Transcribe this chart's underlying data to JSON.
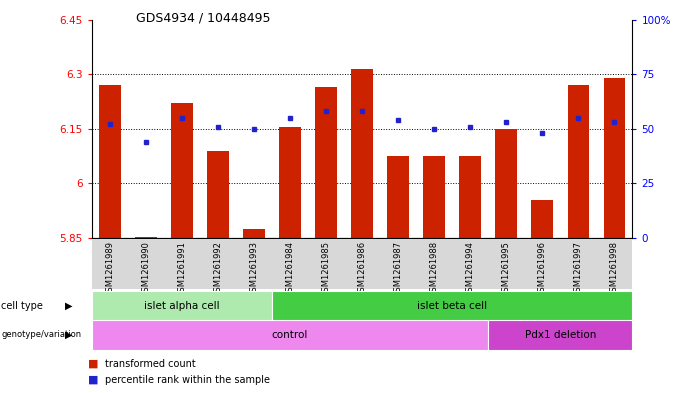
{
  "title": "GDS4934 / 10448495",
  "samples": [
    "GSM1261989",
    "GSM1261990",
    "GSM1261991",
    "GSM1261992",
    "GSM1261993",
    "GSM1261984",
    "GSM1261985",
    "GSM1261986",
    "GSM1261987",
    "GSM1261988",
    "GSM1261994",
    "GSM1261995",
    "GSM1261996",
    "GSM1261997",
    "GSM1261998"
  ],
  "red_values": [
    6.27,
    5.852,
    6.22,
    6.09,
    5.875,
    6.155,
    6.265,
    6.315,
    6.075,
    6.075,
    6.075,
    6.15,
    5.955,
    6.27,
    6.29
  ],
  "blue_values": [
    52,
    44,
    55,
    51,
    50,
    55,
    58,
    58,
    54,
    50,
    51,
    53,
    48,
    55,
    53
  ],
  "ylim_left": [
    5.85,
    6.45
  ],
  "ylim_right": [
    0,
    100
  ],
  "yticks_left": [
    5.85,
    6.0,
    6.15,
    6.3,
    6.45
  ],
  "yticks_right": [
    0,
    25,
    50,
    75,
    100
  ],
  "ytick_labels_left": [
    "5.85",
    "6",
    "6.15",
    "6.3",
    "6.45"
  ],
  "ytick_labels_right": [
    "0",
    "25",
    "50",
    "75",
    "100%"
  ],
  "hlines": [
    6.0,
    6.15,
    6.3
  ],
  "cell_type_groups": [
    {
      "label": "islet alpha cell",
      "start": 0,
      "end": 5,
      "color": "#aeeaae"
    },
    {
      "label": "islet beta cell",
      "start": 5,
      "end": 15,
      "color": "#44cc44"
    }
  ],
  "genotype_groups": [
    {
      "label": "control",
      "start": 0,
      "end": 11,
      "color": "#ee88ee"
    },
    {
      "label": "Pdx1 deletion",
      "start": 11,
      "end": 15,
      "color": "#cc44cc"
    }
  ],
  "bar_color": "#cc2200",
  "dot_color": "#2222cc",
  "legend_items": [
    {
      "color": "#cc2200",
      "label": "transformed count"
    },
    {
      "color": "#2222cc",
      "label": "percentile rank within the sample"
    }
  ]
}
